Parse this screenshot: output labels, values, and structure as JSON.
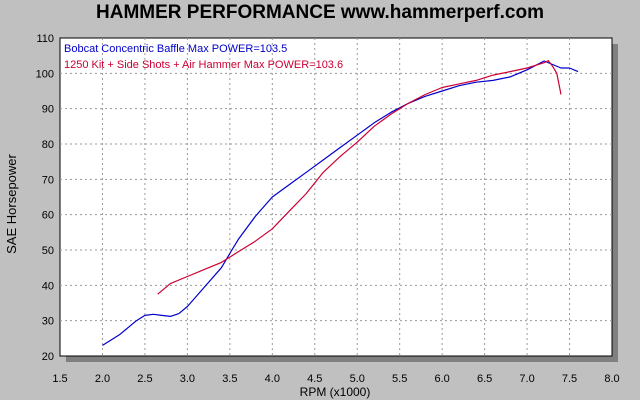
{
  "chart_data": {
    "type": "line",
    "title": "HAMMER PERFORMANCE www.hammerperf.com",
    "xlabel": "RPM (x1000)",
    "ylabel": "SAE Horsepower",
    "xlim": [
      1.5,
      8.0
    ],
    "ylim": [
      20,
      110
    ],
    "x_ticks": [
      "1.5",
      "2.0",
      "2.5",
      "3.0",
      "3.5",
      "4.0",
      "4.5",
      "5.0",
      "5.5",
      "6.0",
      "6.5",
      "7.0",
      "7.5",
      "8.0"
    ],
    "y_ticks": [
      "20",
      "30",
      "40",
      "50",
      "60",
      "70",
      "80",
      "90",
      "100",
      "110"
    ],
    "grid": true,
    "legend_position": "top-left",
    "series": [
      {
        "name": "Bobcat Concentric Baffle  Max POWER=103.5",
        "color": "#0000cc",
        "points": [
          [
            2.0,
            23
          ],
          [
            2.2,
            26
          ],
          [
            2.4,
            30
          ],
          [
            2.5,
            31.5
          ],
          [
            2.6,
            31.8
          ],
          [
            2.7,
            31.5
          ],
          [
            2.8,
            31.2
          ],
          [
            2.9,
            32
          ],
          [
            3.0,
            34
          ],
          [
            3.2,
            39.5
          ],
          [
            3.4,
            45
          ],
          [
            3.5,
            49
          ],
          [
            3.6,
            53
          ],
          [
            3.8,
            59.5
          ],
          [
            4.0,
            65
          ],
          [
            4.2,
            68.5
          ],
          [
            4.4,
            72
          ],
          [
            4.6,
            75.5
          ],
          [
            4.8,
            79
          ],
          [
            5.0,
            82.5
          ],
          [
            5.2,
            86
          ],
          [
            5.4,
            89
          ],
          [
            5.6,
            91.5
          ],
          [
            5.8,
            93.5
          ],
          [
            6.0,
            95
          ],
          [
            6.2,
            96.5
          ],
          [
            6.4,
            97.5
          ],
          [
            6.6,
            98
          ],
          [
            6.8,
            99
          ],
          [
            7.0,
            101
          ],
          [
            7.2,
            103.5
          ],
          [
            7.3,
            102.5
          ],
          [
            7.4,
            101.5
          ],
          [
            7.5,
            101.5
          ],
          [
            7.6,
            100.5
          ]
        ]
      },
      {
        "name": "1250 Kit + Side Shots + Air Hammer  Max POWER=103.6",
        "color": "#cc0033",
        "points": [
          [
            2.65,
            37.5
          ],
          [
            2.8,
            40.5
          ],
          [
            3.0,
            42.5
          ],
          [
            3.2,
            44.5
          ],
          [
            3.4,
            46.5
          ],
          [
            3.6,
            49.5
          ],
          [
            3.8,
            52.5
          ],
          [
            4.0,
            56
          ],
          [
            4.2,
            61
          ],
          [
            4.4,
            66
          ],
          [
            4.6,
            72
          ],
          [
            4.8,
            76.5
          ],
          [
            5.0,
            80.5
          ],
          [
            5.2,
            85
          ],
          [
            5.4,
            88.5
          ],
          [
            5.6,
            91.5
          ],
          [
            5.8,
            94
          ],
          [
            6.0,
            96
          ],
          [
            6.2,
            97
          ],
          [
            6.4,
            98
          ],
          [
            6.6,
            99.5
          ],
          [
            6.8,
            100.5
          ],
          [
            7.0,
            101.5
          ],
          [
            7.2,
            103
          ],
          [
            7.25,
            103.6
          ],
          [
            7.3,
            102
          ],
          [
            7.35,
            100
          ],
          [
            7.4,
            94
          ]
        ]
      }
    ]
  }
}
